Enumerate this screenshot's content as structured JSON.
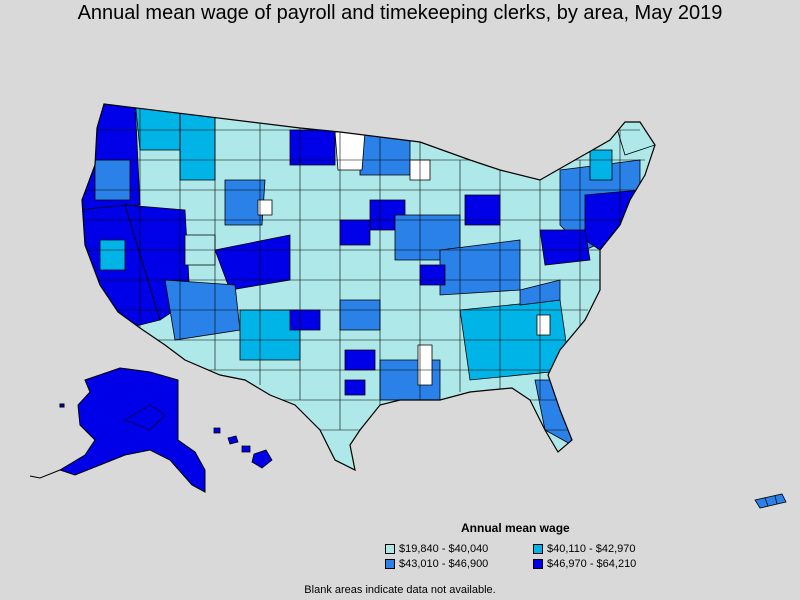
{
  "title": "Annual mean wage of payroll and timekeeping clerks, by area, May 2019",
  "legend": {
    "title": "Annual mean wage",
    "items": [
      {
        "label": "$19,840 - $40,040",
        "color": "#aee8e8"
      },
      {
        "label": "$40,110 - $42,970",
        "color": "#00b4e8"
      },
      {
        "label": "$43,010 - $46,900",
        "color": "#2a82e8"
      },
      {
        "label": "$46,970 - $64,210",
        "color": "#0000e8"
      }
    ]
  },
  "footnote": "Blank areas indicate data not available.",
  "colors": {
    "background": "#d9d9d9",
    "border": "#000000",
    "no_data": "#ffffff"
  }
}
